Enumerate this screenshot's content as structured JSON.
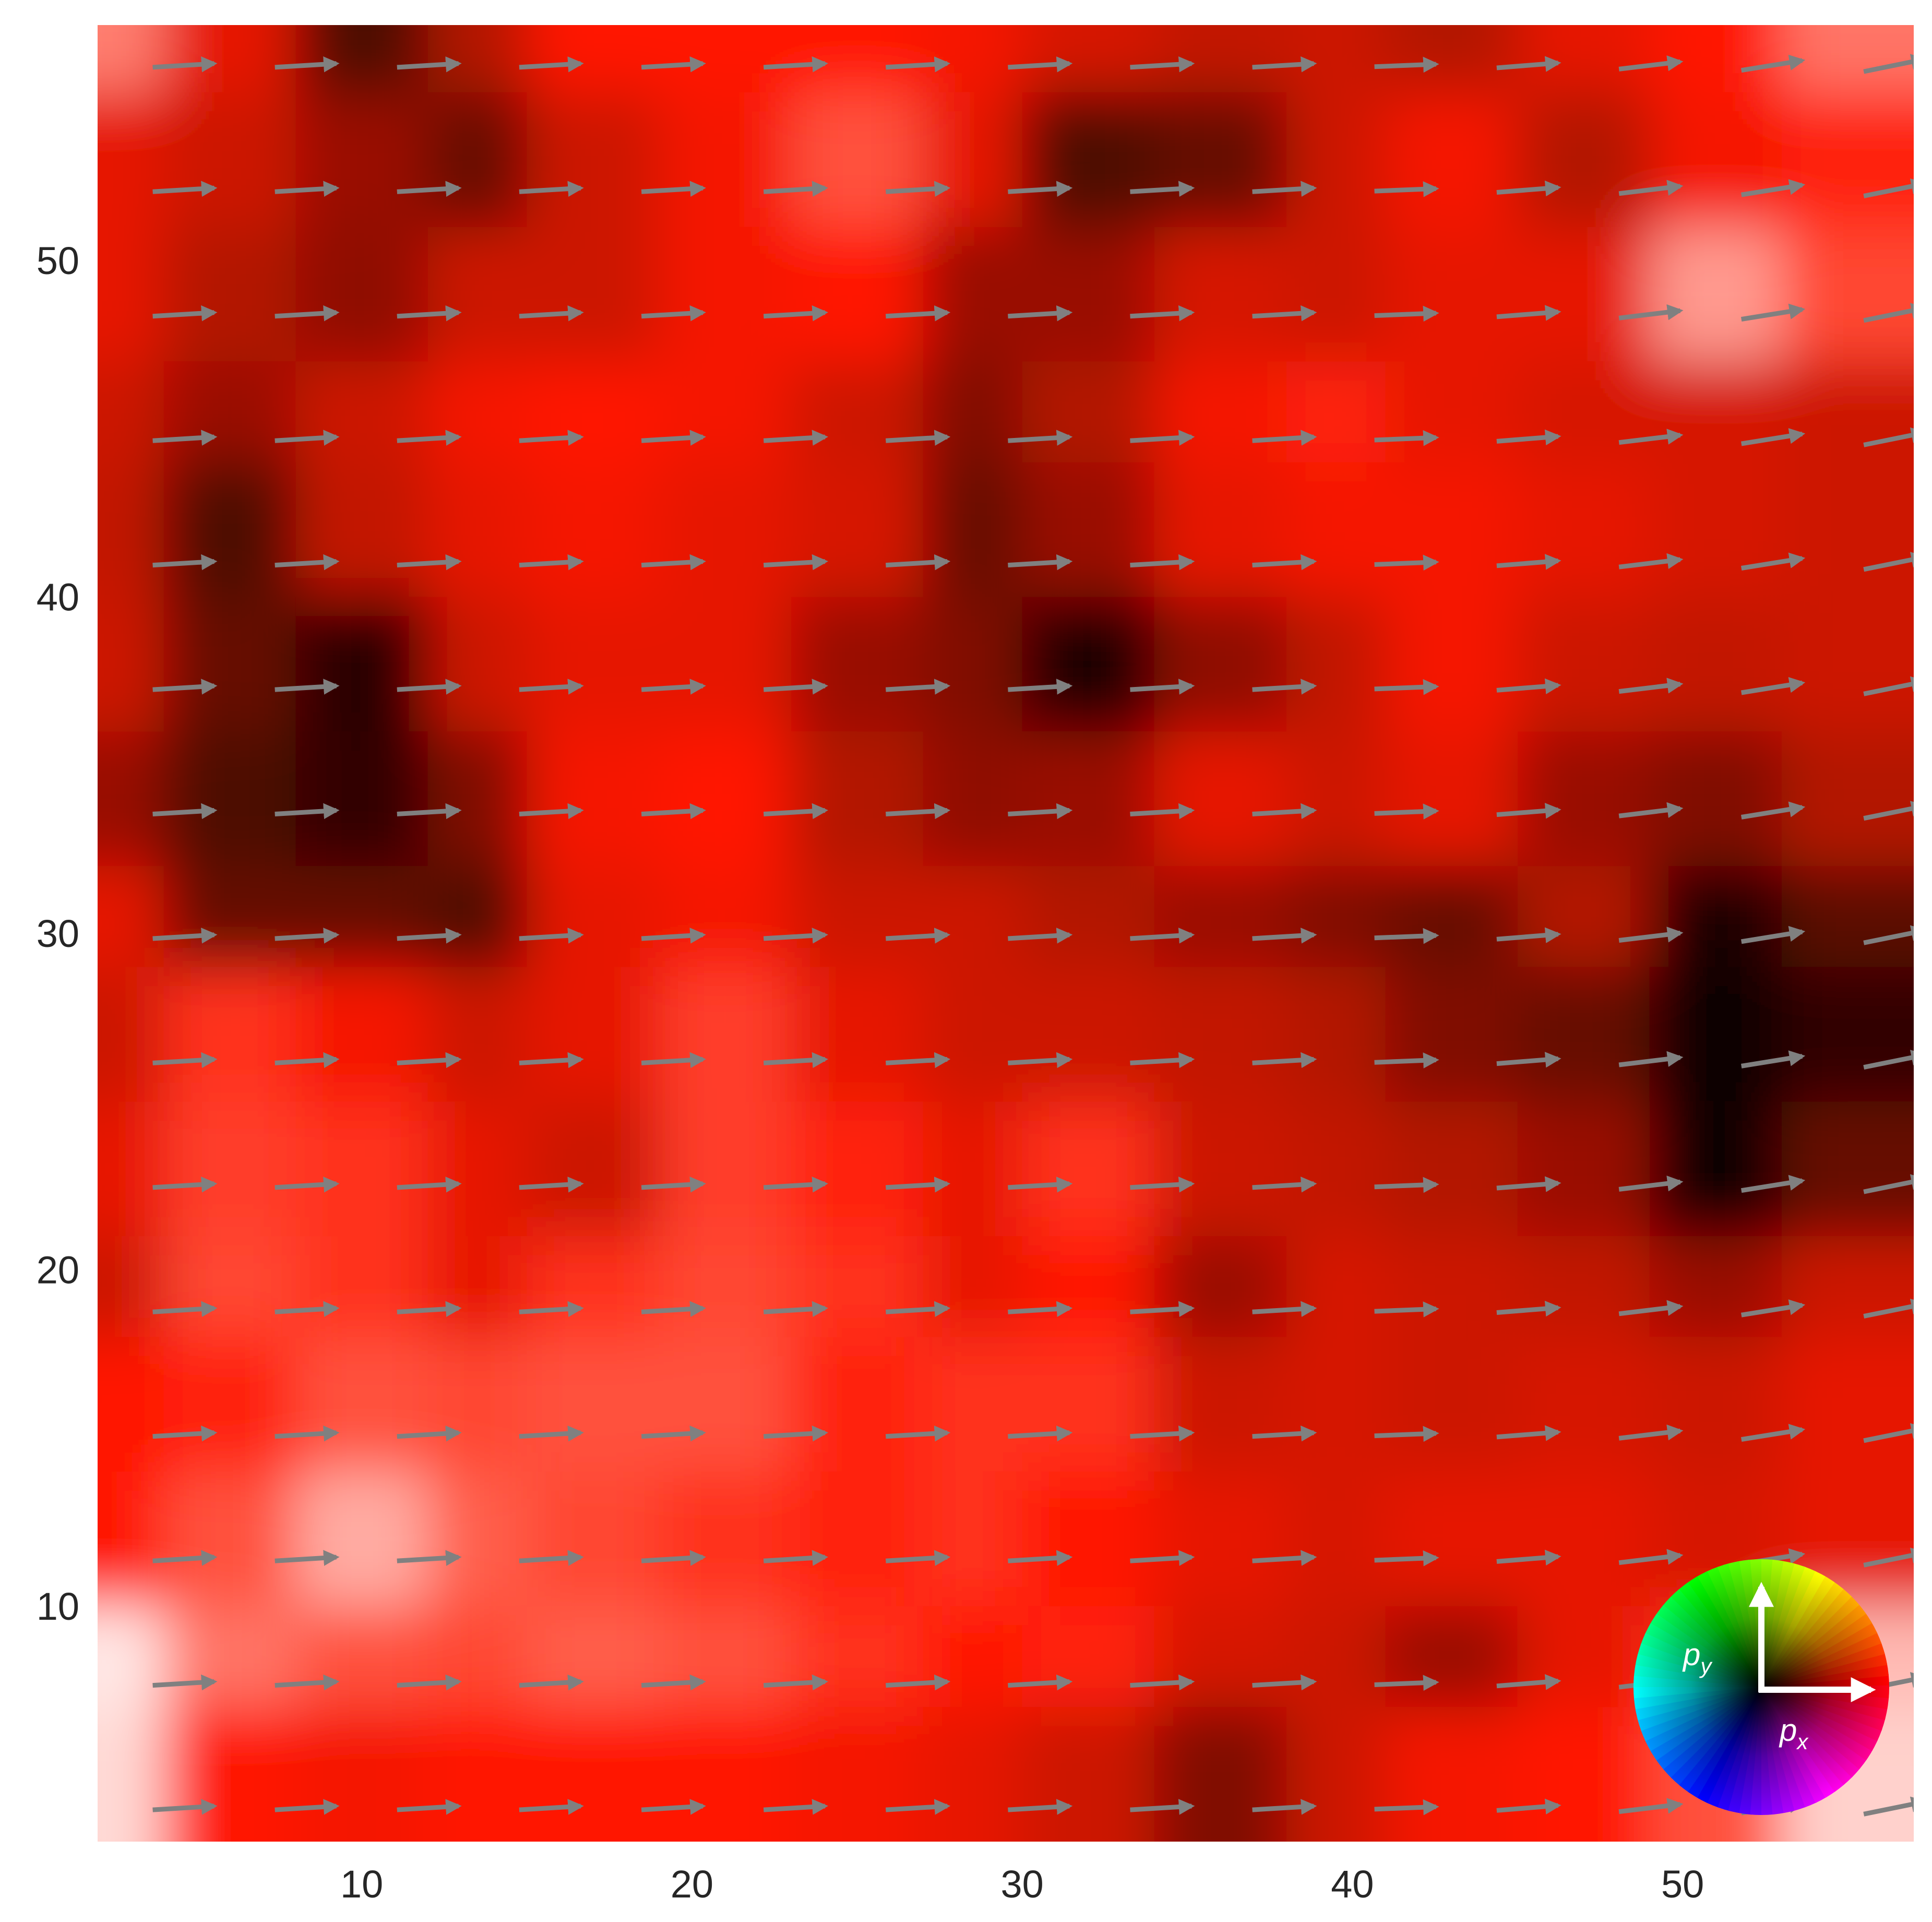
{
  "chart_data": {
    "type": "heatmap",
    "title": "",
    "xlabel": "",
    "ylabel": "",
    "xlim": [
      2,
      57
    ],
    "ylim": [
      3,
      57
    ],
    "x_ticks": [
      10,
      20,
      30,
      40,
      50
    ],
    "y_ticks": [
      10,
      20,
      30,
      40,
      50
    ],
    "x_tick_labels": [
      "10",
      "20",
      "30",
      "40",
      "50"
    ],
    "y_tick_labels": [
      "10",
      "20",
      "30",
      "40",
      "50"
    ],
    "grid": false,
    "background_colormap": "hue = momentum direction, lightness = magnitude (red ≈ +px direction)",
    "quiver": {
      "x": [
        3,
        6.7,
        10.4,
        14.1,
        17.8,
        21.5,
        25.2,
        28.9,
        32.6,
        36.3,
        40,
        43.7,
        47.4,
        51.1,
        54.8
      ],
      "y": [
        4,
        7.7,
        11.4,
        15.1,
        18.8,
        22.5,
        26.2,
        29.9,
        33.6,
        37.3,
        41,
        44.7,
        48.4,
        52.1,
        55.8
      ],
      "arrow_color": "#808080",
      "direction": "approximately +x (slight upward tilt on the right side)"
    },
    "field_samples": {
      "rows_top_to_bottom_y": [
        56,
        52,
        48,
        44,
        41,
        37,
        33,
        29,
        26,
        22,
        18,
        15,
        11,
        7,
        4
      ],
      "cols_left_to_right_x": [
        3,
        7,
        11,
        15,
        18,
        22,
        26,
        30,
        33,
        37,
        41,
        44,
        48,
        52,
        56
      ],
      "lightness": [
        [
          0.72,
          0.45,
          0.15,
          0.35,
          0.5,
          0.5,
          0.5,
          0.48,
          0.42,
          0.38,
          0.4,
          0.35,
          0.45,
          0.5,
          0.7
        ],
        [
          0.45,
          0.4,
          0.3,
          0.2,
          0.4,
          0.48,
          0.62,
          0.45,
          0.15,
          0.2,
          0.4,
          0.48,
          0.35,
          0.48,
          0.52
        ],
        [
          0.45,
          0.35,
          0.28,
          0.4,
          0.4,
          0.48,
          0.5,
          0.3,
          0.3,
          0.42,
          0.4,
          0.45,
          0.45,
          0.78,
          0.6
        ],
        [
          0.4,
          0.3,
          0.4,
          0.48,
          0.5,
          0.48,
          0.4,
          0.25,
          0.35,
          0.48,
          0.52,
          0.45,
          0.42,
          0.42,
          0.4
        ],
        [
          0.38,
          0.15,
          0.38,
          0.45,
          0.48,
          0.45,
          0.42,
          0.2,
          0.3,
          0.45,
          0.48,
          0.48,
          0.45,
          0.42,
          0.4
        ],
        [
          0.4,
          0.2,
          0.08,
          0.4,
          0.45,
          0.45,
          0.3,
          0.25,
          0.05,
          0.28,
          0.38,
          0.48,
          0.4,
          0.38,
          0.4
        ],
        [
          0.3,
          0.15,
          0.1,
          0.25,
          0.48,
          0.5,
          0.35,
          0.28,
          0.3,
          0.45,
          0.4,
          0.45,
          0.3,
          0.25,
          0.35
        ],
        [
          0.45,
          0.2,
          0.2,
          0.15,
          0.45,
          0.48,
          0.4,
          0.4,
          0.35,
          0.3,
          0.25,
          0.2,
          0.35,
          0.05,
          0.18
        ],
        [
          0.4,
          0.55,
          0.48,
          0.4,
          0.45,
          0.58,
          0.45,
          0.4,
          0.4,
          0.38,
          0.35,
          0.25,
          0.2,
          0.02,
          0.1
        ],
        [
          0.45,
          0.58,
          0.55,
          0.45,
          0.4,
          0.58,
          0.52,
          0.45,
          0.55,
          0.4,
          0.38,
          0.35,
          0.3,
          0.02,
          0.2
        ],
        [
          0.4,
          0.6,
          0.55,
          0.45,
          0.55,
          0.6,
          0.55,
          0.45,
          0.5,
          0.3,
          0.42,
          0.4,
          0.38,
          0.3,
          0.4
        ],
        [
          0.5,
          0.52,
          0.62,
          0.6,
          0.62,
          0.62,
          0.52,
          0.55,
          0.55,
          0.4,
          0.42,
          0.4,
          0.42,
          0.4,
          0.45
        ],
        [
          0.5,
          0.62,
          0.82,
          0.65,
          0.6,
          0.55,
          0.52,
          0.55,
          0.5,
          0.45,
          0.42,
          0.45,
          0.45,
          0.42,
          0.45
        ],
        [
          0.95,
          0.7,
          0.62,
          0.6,
          0.65,
          0.62,
          0.55,
          0.5,
          0.52,
          0.42,
          0.4,
          0.3,
          0.45,
          0.55,
          0.85
        ],
        [
          0.92,
          0.5,
          0.48,
          0.5,
          0.5,
          0.5,
          0.48,
          0.45,
          0.4,
          0.25,
          0.4,
          0.48,
          0.5,
          0.62,
          0.9
        ]
      ]
    }
  },
  "color_wheel": {
    "px_label": "p",
    "px_sub": "x",
    "py_label": "p",
    "py_sub": "y",
    "arrow_color": "#ffffff"
  }
}
